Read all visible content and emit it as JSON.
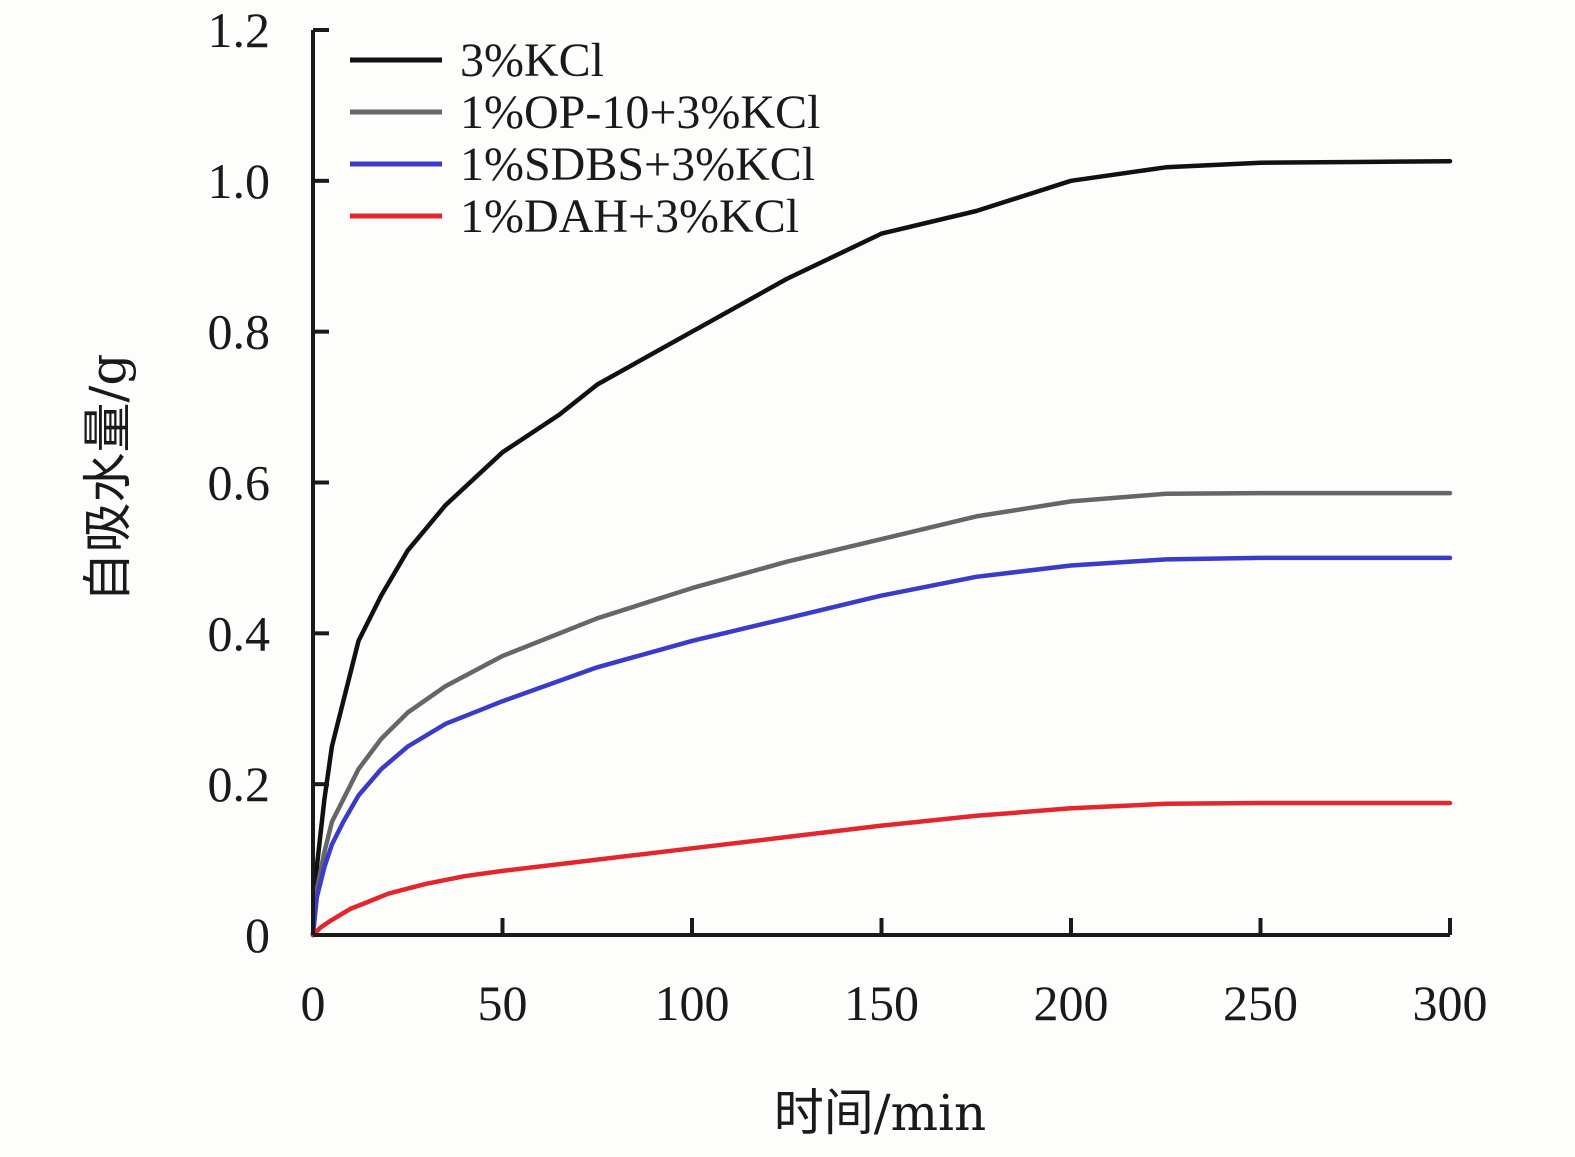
{
  "chart_data": {
    "type": "line",
    "title": "",
    "xlabel": "时间/min",
    "ylabel": "自吸水量/g",
    "xlim": [
      0,
      300
    ],
    "ylim": [
      0,
      1.2
    ],
    "x_ticks": [
      0,
      50,
      100,
      150,
      200,
      250,
      300
    ],
    "x_tick_labels": [
      "0",
      "50",
      "100",
      "150",
      "200",
      "250",
      "300"
    ],
    "y_ticks": [
      0,
      0.2,
      0.4,
      0.6,
      0.8,
      1.0,
      1.2
    ],
    "y_tick_labels": [
      "0",
      "0.2",
      "0.4",
      "0.6",
      "0.8",
      "1.0",
      "1.2"
    ],
    "grid": false,
    "legend_position": "top-left",
    "series": [
      {
        "name": "3%KCl",
        "color": "#111111",
        "x": [
          0,
          1,
          3,
          5,
          8,
          12,
          18,
          25,
          35,
          50,
          65,
          75,
          100,
          125,
          150,
          175,
          200,
          225,
          250,
          275,
          300
        ],
        "y": [
          0,
          0.09,
          0.18,
          0.25,
          0.31,
          0.39,
          0.45,
          0.51,
          0.57,
          0.64,
          0.69,
          0.73,
          0.8,
          0.87,
          0.93,
          0.96,
          1.0,
          1.018,
          1.024,
          1.025,
          1.026
        ]
      },
      {
        "name": "1%OP-10+3%KCl",
        "color": "#666666",
        "x": [
          0,
          1,
          3,
          5,
          8,
          12,
          18,
          25,
          35,
          50,
          75,
          100,
          125,
          150,
          175,
          200,
          225,
          250,
          275,
          300
        ],
        "y": [
          0,
          0.06,
          0.11,
          0.15,
          0.18,
          0.22,
          0.26,
          0.295,
          0.33,
          0.37,
          0.42,
          0.46,
          0.495,
          0.525,
          0.555,
          0.575,
          0.585,
          0.586,
          0.586,
          0.586
        ]
      },
      {
        "name": "1%SDBS+3%KCl",
        "color": "#3b3bc9",
        "x": [
          0,
          1,
          3,
          5,
          8,
          12,
          18,
          25,
          35,
          50,
          75,
          100,
          125,
          150,
          175,
          200,
          225,
          250,
          275,
          300
        ],
        "y": [
          0,
          0.05,
          0.09,
          0.12,
          0.15,
          0.185,
          0.22,
          0.25,
          0.28,
          0.31,
          0.355,
          0.39,
          0.42,
          0.45,
          0.475,
          0.49,
          0.498,
          0.5,
          0.5,
          0.5
        ]
      },
      {
        "name": "1%DAH+3%KCl",
        "color": "#e3262d",
        "x": [
          0,
          2,
          5,
          10,
          15,
          20,
          30,
          40,
          50,
          75,
          100,
          125,
          150,
          175,
          200,
          225,
          250,
          275,
          300
        ],
        "y": [
          0,
          0.01,
          0.02,
          0.035,
          0.045,
          0.055,
          0.068,
          0.078,
          0.085,
          0.1,
          0.115,
          0.13,
          0.145,
          0.158,
          0.168,
          0.174,
          0.175,
          0.175,
          0.175
        ]
      }
    ]
  }
}
